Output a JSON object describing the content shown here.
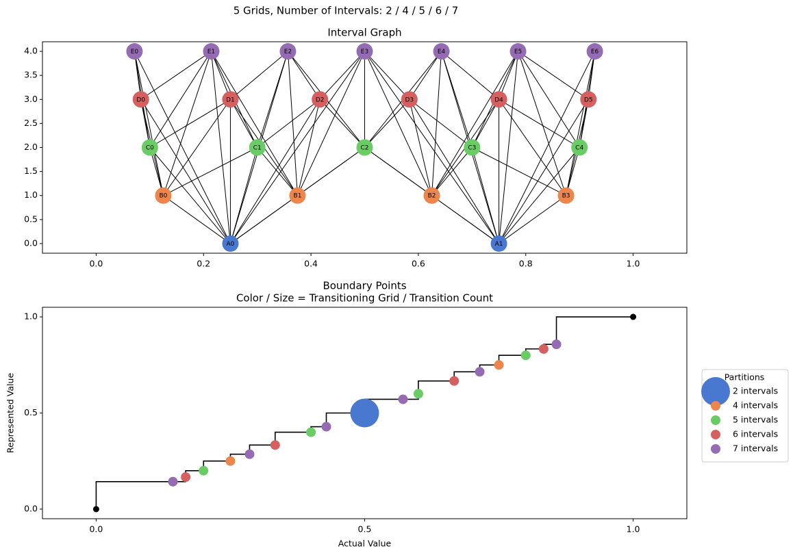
{
  "figure_title": "5 Grids, Number of Intervals: 2 / 4 / 5 / 6 / 7",
  "chart_data": [
    {
      "type": "graph",
      "title": "Interval Graph",
      "xlim": [
        -0.1,
        1.1
      ],
      "ylim": [
        -0.2,
        4.2
      ],
      "xticks": [
        {
          "value": 0,
          "label": "0.0"
        },
        {
          "value": 0.2,
          "label": "0.2"
        },
        {
          "value": 0.4,
          "label": "0.4"
        },
        {
          "value": 0.6,
          "label": "0.6"
        },
        {
          "value": 0.8,
          "label": "0.8"
        },
        {
          "value": 1,
          "label": "1.0"
        }
      ],
      "yticks": [
        {
          "value": 0,
          "label": "0.0"
        },
        {
          "value": 0.5,
          "label": "0.5"
        },
        {
          "value": 1,
          "label": "1.0"
        },
        {
          "value": 1.5,
          "label": "1.5"
        },
        {
          "value": 2,
          "label": "2.0"
        },
        {
          "value": 2.5,
          "label": "2.5"
        },
        {
          "value": 3,
          "label": "3.0"
        },
        {
          "value": 3.5,
          "label": "3.5"
        },
        {
          "value": 4,
          "label": "4.0"
        }
      ],
      "groups": [
        {
          "color": "#4878d0",
          "nodes": [
            {
              "label": "A0",
              "x": 0.25,
              "y": 0
            },
            {
              "label": "A1",
              "x": 0.75,
              "y": 0
            }
          ]
        },
        {
          "color": "#ee854a",
          "nodes": [
            {
              "label": "B0",
              "x": 0.125,
              "y": 1
            },
            {
              "label": "B1",
              "x": 0.375,
              "y": 1
            },
            {
              "label": "B2",
              "x": 0.625,
              "y": 1
            },
            {
              "label": "B3",
              "x": 0.875,
              "y": 1
            }
          ]
        },
        {
          "color": "#6acc64",
          "nodes": [
            {
              "label": "C0",
              "x": 0.1,
              "y": 2
            },
            {
              "label": "C1",
              "x": 0.3,
              "y": 2
            },
            {
              "label": "C2",
              "x": 0.5,
              "y": 2
            },
            {
              "label": "C3",
              "x": 0.7,
              "y": 2
            },
            {
              "label": "C4",
              "x": 0.9,
              "y": 2
            }
          ]
        },
        {
          "color": "#d65f5f",
          "nodes": [
            {
              "label": "D0",
              "x": 0.0833,
              "y": 3
            },
            {
              "label": "D1",
              "x": 0.25,
              "y": 3
            },
            {
              "label": "D2",
              "x": 0.4167,
              "y": 3
            },
            {
              "label": "D3",
              "x": 0.5833,
              "y": 3
            },
            {
              "label": "D4",
              "x": 0.75,
              "y": 3
            },
            {
              "label": "D5",
              "x": 0.9167,
              "y": 3
            }
          ]
        },
        {
          "color": "#956cb4",
          "nodes": [
            {
              "label": "E0",
              "x": 0.0714,
              "y": 4
            },
            {
              "label": "E1",
              "x": 0.2143,
              "y": 4
            },
            {
              "label": "E2",
              "x": 0.3571,
              "y": 4
            },
            {
              "label": "E3",
              "x": 0.5,
              "y": 4
            },
            {
              "label": "E4",
              "x": 0.6429,
              "y": 4
            },
            {
              "label": "E5",
              "x": 0.7857,
              "y": 4
            },
            {
              "label": "E6",
              "x": 0.9286,
              "y": 4
            }
          ]
        }
      ],
      "edges": [
        [
          "A0",
          "B0"
        ],
        [
          "A0",
          "B1"
        ],
        [
          "A0",
          "C0"
        ],
        [
          "A0",
          "C1"
        ],
        [
          "A0",
          "C2"
        ],
        [
          "A0",
          "D0"
        ],
        [
          "A0",
          "D1"
        ],
        [
          "A0",
          "D2"
        ],
        [
          "A0",
          "E0"
        ],
        [
          "A0",
          "E1"
        ],
        [
          "A0",
          "E2"
        ],
        [
          "A0",
          "E3"
        ],
        [
          "A1",
          "B2"
        ],
        [
          "A1",
          "B3"
        ],
        [
          "A1",
          "C2"
        ],
        [
          "A1",
          "C3"
        ],
        [
          "A1",
          "C4"
        ],
        [
          "A1",
          "D3"
        ],
        [
          "A1",
          "D4"
        ],
        [
          "A1",
          "D5"
        ],
        [
          "A1",
          "E3"
        ],
        [
          "A1",
          "E4"
        ],
        [
          "A1",
          "E5"
        ],
        [
          "A1",
          "E6"
        ],
        [
          "B0",
          "C0"
        ],
        [
          "B0",
          "C1"
        ],
        [
          "B0",
          "D0"
        ],
        [
          "B0",
          "D1"
        ],
        [
          "B0",
          "E0"
        ],
        [
          "B0",
          "E1"
        ],
        [
          "B1",
          "C1"
        ],
        [
          "B1",
          "C2"
        ],
        [
          "B1",
          "D1"
        ],
        [
          "B1",
          "D2"
        ],
        [
          "B1",
          "E1"
        ],
        [
          "B1",
          "E2"
        ],
        [
          "B1",
          "E3"
        ],
        [
          "B2",
          "C2"
        ],
        [
          "B2",
          "C3"
        ],
        [
          "B2",
          "D3"
        ],
        [
          "B2",
          "D4"
        ],
        [
          "B2",
          "E3"
        ],
        [
          "B2",
          "E4"
        ],
        [
          "B2",
          "E5"
        ],
        [
          "B3",
          "C3"
        ],
        [
          "B3",
          "C4"
        ],
        [
          "B3",
          "D4"
        ],
        [
          "B3",
          "D5"
        ],
        [
          "B3",
          "E5"
        ],
        [
          "B3",
          "E6"
        ],
        [
          "C0",
          "D0"
        ],
        [
          "C0",
          "D1"
        ],
        [
          "C0",
          "E0"
        ],
        [
          "C0",
          "E1"
        ],
        [
          "C1",
          "D1"
        ],
        [
          "C1",
          "D2"
        ],
        [
          "C1",
          "E1"
        ],
        [
          "C1",
          "E2"
        ],
        [
          "C2",
          "D2"
        ],
        [
          "C2",
          "D3"
        ],
        [
          "C2",
          "E2"
        ],
        [
          "C2",
          "E3"
        ],
        [
          "C2",
          "E4"
        ],
        [
          "C3",
          "D3"
        ],
        [
          "C3",
          "D4"
        ],
        [
          "C3",
          "E4"
        ],
        [
          "C3",
          "E5"
        ],
        [
          "C4",
          "D4"
        ],
        [
          "C4",
          "D5"
        ],
        [
          "C4",
          "E5"
        ],
        [
          "C4",
          "E6"
        ],
        [
          "D0",
          "E0"
        ],
        [
          "D0",
          "E1"
        ],
        [
          "D1",
          "E1"
        ],
        [
          "D1",
          "E2"
        ],
        [
          "D2",
          "E2"
        ],
        [
          "D2",
          "E3"
        ],
        [
          "D3",
          "E3"
        ],
        [
          "D3",
          "E4"
        ],
        [
          "D4",
          "E4"
        ],
        [
          "D4",
          "E5"
        ],
        [
          "D5",
          "E5"
        ],
        [
          "D5",
          "E6"
        ]
      ]
    },
    {
      "type": "scatter",
      "title": "Boundary Points",
      "subtitle": "Color / Size = Transitioning Grid / Transition Count",
      "xlabel": "Actual Value",
      "ylabel": "Represented Value",
      "xlim": [
        -0.1,
        1.1
      ],
      "ylim": [
        -0.05,
        1.05
      ],
      "xticks": [
        {
          "value": 0,
          "label": "0.0"
        },
        {
          "value": 0.5,
          "label": "0.5"
        },
        {
          "value": 1,
          "label": "1.0"
        }
      ],
      "yticks": [
        {
          "value": 0,
          "label": "0.0"
        },
        {
          "value": 0.5,
          "label": "0.5"
        },
        {
          "value": 1,
          "label": "1.0"
        }
      ],
      "line": {
        "color": "#000000",
        "x": [
          0,
          0,
          0.1667,
          0.1667,
          0.2,
          0.2,
          0.25,
          0.25,
          0.2857,
          0.2857,
          0.3333,
          0.3333,
          0.4,
          0.4,
          0.4286,
          0.4286,
          0.5,
          0.5,
          0.6,
          0.6,
          0.6667,
          0.6667,
          0.7143,
          0.7143,
          0.75,
          0.75,
          0.8,
          0.8,
          0.8333,
          0.8333,
          0.8571,
          0.8571,
          1
        ],
        "y": [
          0,
          0.1429,
          0.1429,
          0.2,
          0.2,
          0.25,
          0.25,
          0.2857,
          0.2857,
          0.3333,
          0.3333,
          0.4,
          0.4,
          0.4286,
          0.4286,
          0.5,
          0.5,
          0.5714,
          0.5714,
          0.6667,
          0.6667,
          0.7143,
          0.7143,
          0.75,
          0.75,
          0.8,
          0.8,
          0.8333,
          0.8333,
          0.8571,
          0.8571,
          1,
          1
        ]
      },
      "endpoints": {
        "color": "#000000",
        "x": [
          0,
          1
        ],
        "y": [
          0,
          1
        ]
      },
      "legend": {
        "title": "Partitions",
        "loc": "center left outside"
      },
      "series": [
        {
          "name": "2 intervals",
          "color": "#4878d0",
          "x": [
            0.5
          ],
          "y": [
            0.5
          ],
          "sizes": [
            3
          ]
        },
        {
          "name": "4 intervals",
          "color": "#ee854a",
          "x": [
            0.25,
            0.75
          ],
          "y": [
            0.25,
            0.75
          ],
          "sizes": [
            1,
            1
          ]
        },
        {
          "name": "5 intervals",
          "color": "#6acc64",
          "x": [
            0.2,
            0.4,
            0.6,
            0.8
          ],
          "y": [
            0.2,
            0.4,
            0.6,
            0.8
          ],
          "sizes": [
            1,
            1,
            1,
            1
          ]
        },
        {
          "name": "6 intervals",
          "color": "#d65f5f",
          "x": [
            0.1667,
            0.3333,
            0.6667,
            0.8333
          ],
          "y": [
            0.1667,
            0.3333,
            0.6667,
            0.8333
          ],
          "sizes": [
            1,
            1,
            1,
            1
          ]
        },
        {
          "name": "7 intervals",
          "color": "#956cb4",
          "x": [
            0.1429,
            0.2857,
            0.4286,
            0.5714,
            0.7143,
            0.8571
          ],
          "y": [
            0.1429,
            0.2857,
            0.4286,
            0.5714,
            0.7143,
            0.8571
          ],
          "sizes": [
            1,
            1,
            1,
            1,
            1,
            1
          ]
        }
      ]
    }
  ]
}
